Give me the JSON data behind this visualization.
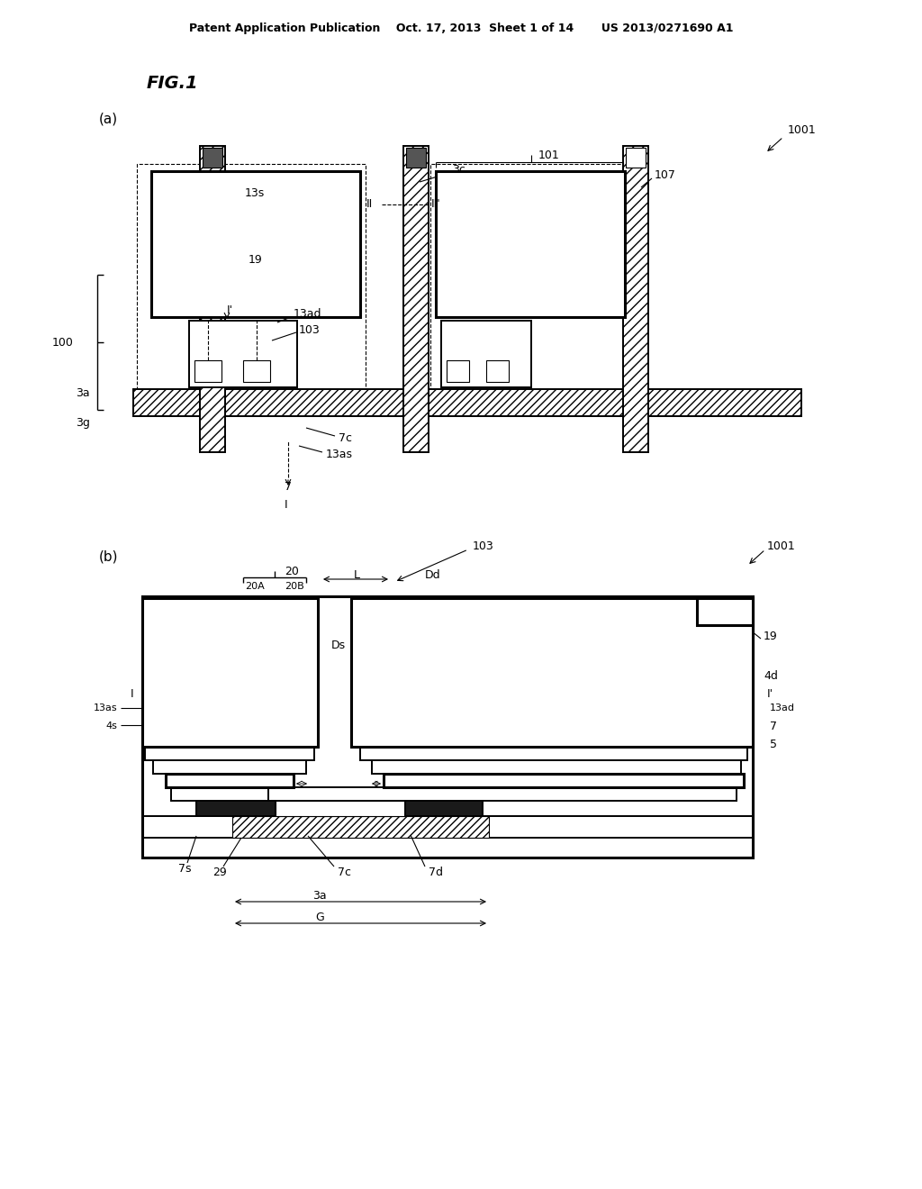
{
  "bg_color": "#ffffff",
  "fig_width": 10.24,
  "fig_height": 13.2,
  "header": "Patent Application Publication    Oct. 17, 2013  Sheet 1 of 14       US 2013/0271690 A1",
  "fig_label": "FIG.1",
  "panel_a_label": "(a)",
  "panel_b_label": "(b)"
}
